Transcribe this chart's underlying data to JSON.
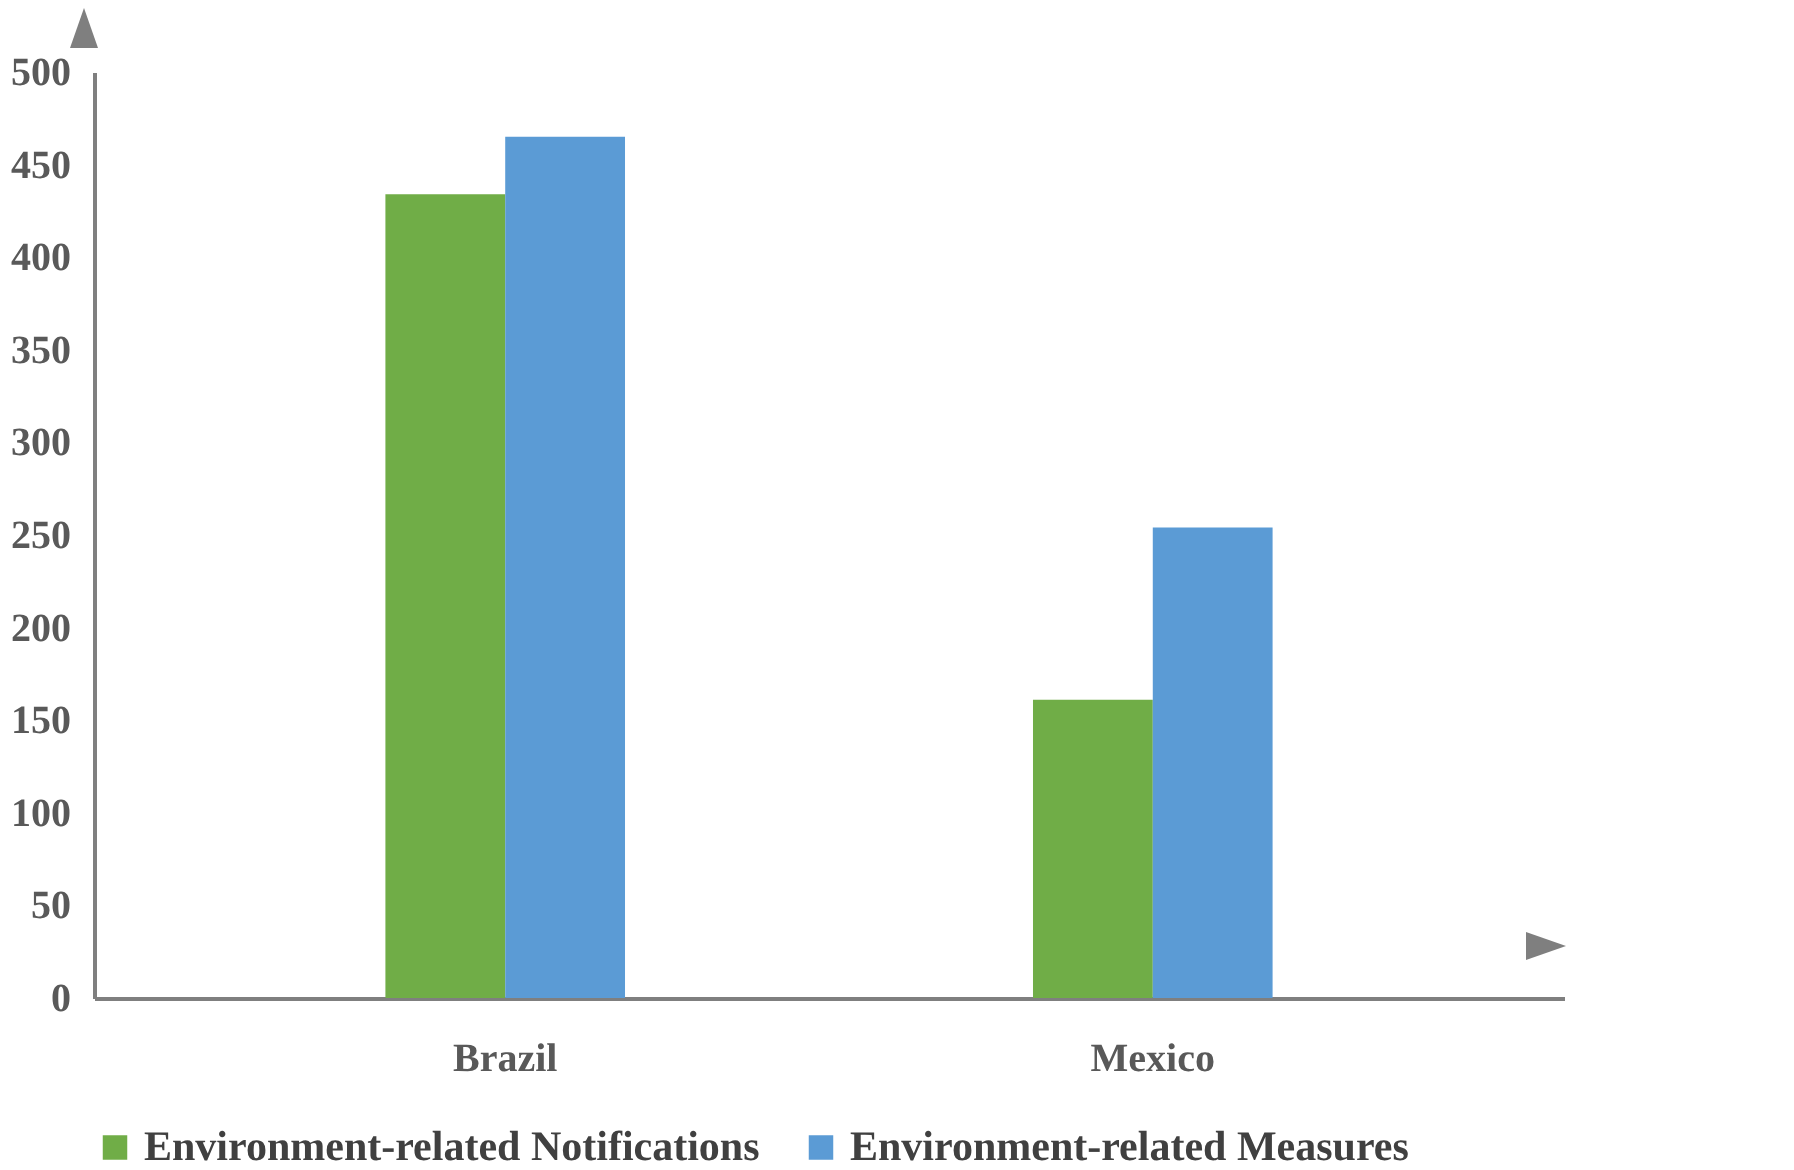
{
  "chart_data": {
    "type": "bar",
    "categories": [
      "Brazil",
      "Mexico"
    ],
    "series": [
      {
        "name": "Environment-related Notifications",
        "color": "#70ad47",
        "values": [
          434,
          161
        ]
      },
      {
        "name": "Environment-related Measures",
        "color": "#5b9bd5",
        "values": [
          465,
          254
        ]
      }
    ],
    "ylim": [
      0,
      500
    ],
    "yticks": [
      0,
      50,
      100,
      150,
      200,
      250,
      300,
      350,
      400,
      450,
      500
    ],
    "grid": false,
    "legend": "bottom"
  }
}
